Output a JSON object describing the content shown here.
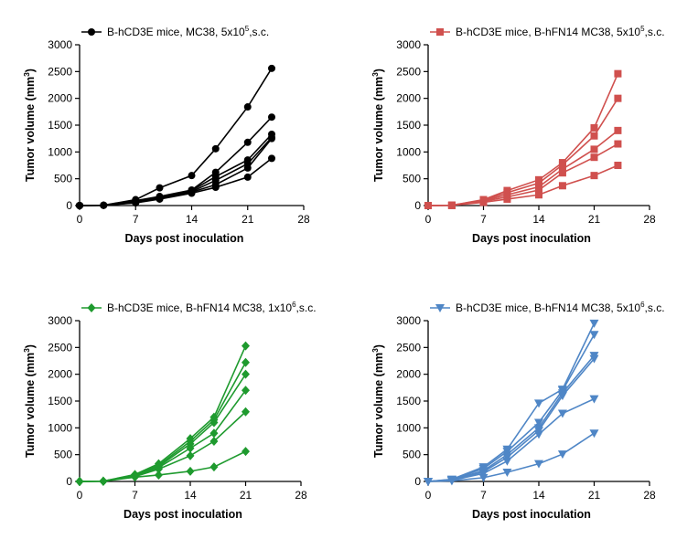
{
  "chart_data": [
    {
      "type": "line",
      "color": "#000000",
      "marker": "circle",
      "legend": {
        "prefix": "B-hCD3E mice, MC38, 5x10",
        "sup": "5",
        "suffix": ",s.c."
      },
      "xlabel": "Days post inoculation",
      "ylabel": "Tumor volume (mm",
      "ylabel_sup": "3",
      "ylabel_suffix": ")",
      "xlim": [
        0,
        28
      ],
      "ylim": [
        0,
        3000
      ],
      "xticks": [
        0,
        7,
        14,
        21,
        28
      ],
      "yticks": [
        0,
        500,
        1000,
        1500,
        2000,
        2500,
        3000
      ],
      "x": [
        0,
        3,
        7,
        10,
        14,
        17,
        21,
        24
      ],
      "series": [
        {
          "values": [
            0,
            5,
            110,
            330,
            560,
            1060,
            1840,
            2560
          ]
        },
        {
          "values": [
            0,
            5,
            90,
            170,
            290,
            620,
            1180,
            1650
          ]
        },
        {
          "values": [
            0,
            5,
            75,
            150,
            280,
            540,
            850,
            1330
          ]
        },
        {
          "values": [
            0,
            5,
            60,
            140,
            260,
            470,
            780,
            1270
          ]
        },
        {
          "values": [
            0,
            5,
            55,
            130,
            250,
            390,
            700,
            1250
          ]
        },
        {
          "values": [
            0,
            5,
            50,
            120,
            230,
            340,
            530,
            880
          ]
        }
      ]
    },
    {
      "type": "line",
      "color": "#d0504e",
      "marker": "square",
      "legend": {
        "prefix": "B-hCD3E mice, B-hFN14 MC38, 5x10",
        "sup": "5",
        "suffix": ",s.c."
      },
      "xlabel": "Days post inoculation",
      "ylabel": "Tumor volume (mm",
      "ylabel_sup": "3",
      "ylabel_suffix": ")",
      "xlim": [
        0,
        28
      ],
      "ylim": [
        0,
        3000
      ],
      "xticks": [
        0,
        7,
        14,
        21,
        28
      ],
      "yticks": [
        0,
        500,
        1000,
        1500,
        2000,
        2500,
        3000
      ],
      "x": [
        0,
        3,
        7,
        10,
        14,
        17,
        21,
        24
      ],
      "series": [
        {
          "values": [
            0,
            5,
            110,
            280,
            480,
            800,
            1450,
            2460
          ]
        },
        {
          "values": [
            0,
            5,
            100,
            240,
            420,
            760,
            1300,
            2000
          ]
        },
        {
          "values": [
            0,
            5,
            90,
            200,
            350,
            680,
            1050,
            1400
          ]
        },
        {
          "values": [
            0,
            5,
            80,
            160,
            290,
            610,
            900,
            1150
          ]
        },
        {
          "values": [
            0,
            5,
            60,
            120,
            200,
            370,
            560,
            750
          ]
        }
      ]
    },
    {
      "type": "line",
      "color": "#1e9a2e",
      "marker": "diamond",
      "legend": {
        "prefix": "B-hCD3E mice, B-hFN14 MC38, 1x10",
        "sup": "6",
        "suffix": ",s.c."
      },
      "xlabel": "Days post inoculation",
      "ylabel": "Tumor volume (mm",
      "ylabel_sup": "3",
      "ylabel_suffix": ")",
      "xlim": [
        0,
        28
      ],
      "ylim": [
        0,
        3000
      ],
      "xticks": [
        0,
        7,
        14,
        21,
        28
      ],
      "yticks": [
        0,
        500,
        1000,
        1500,
        2000,
        2500,
        3000
      ],
      "x": [
        0,
        3,
        7,
        10,
        14,
        17,
        21
      ],
      "series": [
        {
          "values": [
            0,
            5,
            130,
            330,
            800,
            1200,
            2530
          ]
        },
        {
          "values": [
            0,
            5,
            120,
            300,
            750,
            1150,
            2220
          ]
        },
        {
          "values": [
            0,
            5,
            110,
            280,
            700,
            1100,
            2000
          ]
        },
        {
          "values": [
            0,
            5,
            100,
            260,
            620,
            900,
            1700
          ]
        },
        {
          "values": [
            0,
            5,
            90,
            230,
            480,
            750,
            1300
          ]
        },
        {
          "values": [
            0,
            5,
            80,
            120,
            190,
            270,
            560
          ]
        }
      ]
    },
    {
      "type": "line",
      "color": "#4f86c6",
      "marker": "triangle-down",
      "legend": {
        "prefix": "B-hCD3E mice, B-hFN14 MC38, 5x10",
        "sup": "6",
        "suffix": ",s.c."
      },
      "xlabel": "Days post inoculation",
      "ylabel": "Tumor volume (mm",
      "ylabel_sup": "3",
      "ylabel_suffix": ")",
      "xlim": [
        0,
        28
      ],
      "ylim": [
        0,
        3000
      ],
      "xticks": [
        0,
        7,
        14,
        21,
        28
      ],
      "yticks": [
        0,
        500,
        1000,
        1500,
        2000,
        2500,
        3000
      ],
      "x": [
        0,
        3,
        7,
        10,
        14,
        17,
        21
      ],
      "series": [
        {
          "values": [
            0,
            40,
            270,
            600,
            1460,
            1720,
            2950
          ]
        },
        {
          "values": [
            0,
            35,
            240,
            560,
            1100,
            1700,
            2740
          ]
        },
        {
          "values": [
            0,
            30,
            200,
            500,
            1000,
            1650,
            2350
          ]
        },
        {
          "values": [
            0,
            25,
            180,
            450,
            950,
            1600,
            2290
          ]
        },
        {
          "values": [
            0,
            20,
            150,
            380,
            880,
            1270,
            1540
          ]
        },
        {
          "values": [
            0,
            10,
            70,
            170,
            330,
            510,
            900
          ]
        }
      ]
    }
  ]
}
